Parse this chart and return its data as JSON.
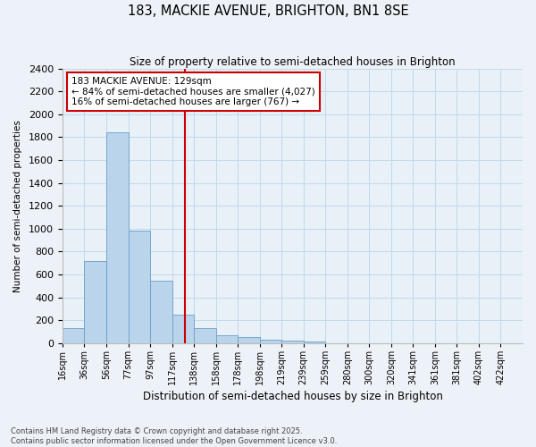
{
  "title": "183, MACKIE AVENUE, BRIGHTON, BN1 8SE",
  "subtitle": "Size of property relative to semi-detached houses in Brighton",
  "xlabel": "Distribution of semi-detached houses by size in Brighton",
  "ylabel": "Number of semi-detached properties",
  "footnote": "Contains HM Land Registry data © Crown copyright and database right 2025.\nContains public sector information licensed under the Open Government Licence v3.0.",
  "bar_color": "#bad4ec",
  "bar_edge_color": "#6a9fc8",
  "grid_color": "#c5d8ea",
  "background_color": "#e8f0f8",
  "fig_background": "#edf2f8",
  "annotation_text": "183 MACKIE AVENUE: 129sqm\n← 84% of semi-detached houses are smaller (4,027)\n16% of semi-detached houses are larger (767) →",
  "vline_x": 4,
  "vline_color": "#cc0000",
  "bar_heights": [
    130,
    720,
    1840,
    980,
    545,
    245,
    130,
    65,
    50,
    30,
    20,
    10,
    0,
    0,
    0,
    0,
    0,
    0,
    0,
    0,
    0
  ],
  "ylim": [
    0,
    2400
  ],
  "yticks": [
    0,
    200,
    400,
    600,
    800,
    1000,
    1200,
    1400,
    1600,
    1800,
    2000,
    2200,
    2400
  ],
  "bin_labels": [
    "16sqm",
    "36sqm",
    "56sqm",
    "77sqm",
    "97sqm",
    "117sqm",
    "138sqm",
    "158sqm",
    "178sqm",
    "198sqm",
    "219sqm",
    "239sqm",
    "259sqm",
    "280sqm",
    "300sqm",
    "320sqm",
    "341sqm",
    "361sqm",
    "381sqm",
    "402sqm",
    "422sqm"
  ]
}
